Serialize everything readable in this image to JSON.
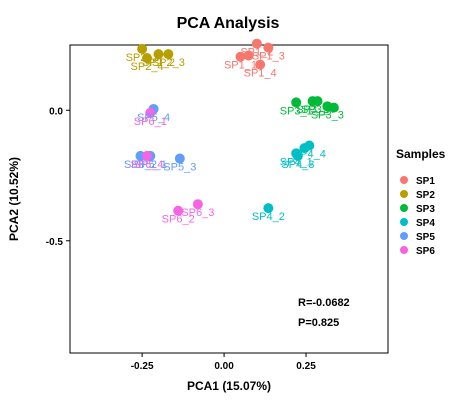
{
  "chart_data": {
    "type": "scatter",
    "title": "PCA Analysis",
    "xlabel": "PCA1 (15.07%)",
    "ylabel": "PCA2 (10.52%)",
    "xlim": [
      -0.47,
      0.5
    ],
    "ylim": [
      -0.93,
      0.25
    ],
    "xticks": [
      -0.25,
      0.0,
      0.25
    ],
    "xtick_labels": [
      "-0.25",
      "0.00",
      "0.25"
    ],
    "yticks": [
      0.0,
      -0.5
    ],
    "ytick_labels": [
      "0.0",
      "-0.5"
    ],
    "grid": false,
    "legend_title": "Samples",
    "legend_position": "right",
    "series": [
      {
        "name": "SP1",
        "color": "#F8766D",
        "points": [
          {
            "label": "SP1_1",
            "x": 0.05,
            "y": 0.205
          },
          {
            "label": "SP1_2",
            "x": 0.1,
            "y": 0.255
          },
          {
            "label": "SP1_3",
            "x": 0.135,
            "y": 0.24
          },
          {
            "label": "SP1_4",
            "x": 0.11,
            "y": 0.175
          },
          {
            "label": "",
            "x": 0.075,
            "y": 0.21
          }
        ]
      },
      {
        "name": "SP2",
        "color": "#B79F00",
        "points": [
          {
            "label": "SP2_1",
            "x": -0.25,
            "y": 0.235
          },
          {
            "label": "SP2_2",
            "x": -0.2,
            "y": 0.215
          },
          {
            "label": "SP2_3",
            "x": -0.17,
            "y": 0.215
          },
          {
            "label": "SP2_4",
            "x": -0.235,
            "y": 0.2
          }
        ]
      },
      {
        "name": "SP3",
        "color": "#00BA38",
        "points": [
          {
            "label": "SP3_1",
            "x": 0.22,
            "y": 0.03
          },
          {
            "label": "SP3_2",
            "x": 0.27,
            "y": 0.035
          },
          {
            "label": "SP3_3",
            "x": 0.315,
            "y": 0.015
          },
          {
            "label": "SP3_4",
            "x": 0.285,
            "y": 0.035
          },
          {
            "label": "",
            "x": 0.335,
            "y": 0.01
          }
        ]
      },
      {
        "name": "SP4",
        "color": "#00BFC4",
        "points": [
          {
            "label": "SP4_1",
            "x": 0.22,
            "y": -0.165
          },
          {
            "label": "SP4_2",
            "x": 0.135,
            "y": -0.375
          },
          {
            "label": "SP4_3",
            "x": 0.225,
            "y": -0.175
          },
          {
            "label": "SP4_4",
            "x": 0.26,
            "y": -0.135
          },
          {
            "label": "",
            "x": 0.245,
            "y": -0.145
          }
        ]
      },
      {
        "name": "SP5",
        "color": "#619CFF",
        "points": [
          {
            "label": "SP5_1",
            "x": -0.225,
            "y": -0.175
          },
          {
            "label": "SP5_2",
            "x": -0.255,
            "y": -0.175
          },
          {
            "label": "SP5_3",
            "x": -0.135,
            "y": -0.185
          },
          {
            "label": "SP5_4",
            "x": -0.215,
            "y": 0.005
          }
        ]
      },
      {
        "name": "SP6",
        "color": "#F564E3",
        "points": [
          {
            "label": "SP6_1",
            "x": -0.225,
            "y": -0.01
          },
          {
            "label": "SP6_2",
            "x": -0.14,
            "y": -0.385
          },
          {
            "label": "SP6_3",
            "x": -0.08,
            "y": -0.36
          },
          {
            "label": "SP6_4",
            "x": -0.235,
            "y": -0.175
          }
        ]
      }
    ],
    "annotations": [
      "R=-0.0682",
      "P=0.825"
    ]
  }
}
